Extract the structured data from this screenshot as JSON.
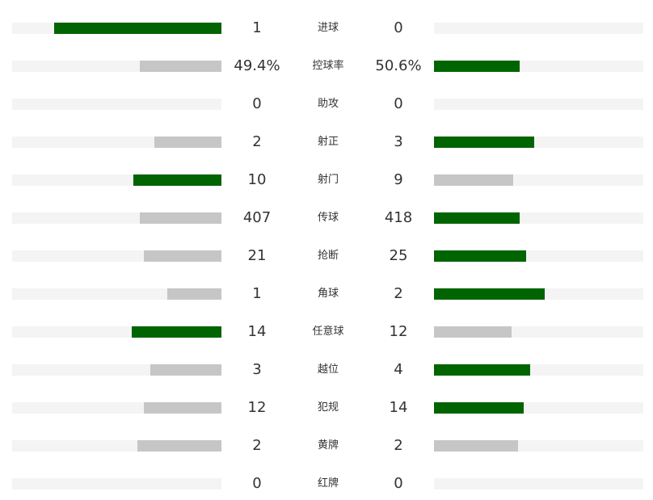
{
  "colors": {
    "leader": "#006400",
    "trailer": "#c6c6c6",
    "track": "#f4f4f4"
  },
  "stats": [
    {
      "label": "进球",
      "home": "1",
      "away": "0",
      "home_fill": 0.8,
      "away_fill": 0.0
    },
    {
      "label": "控球率",
      "home": "49.4%",
      "away": "50.6%",
      "home_fill": 0.39,
      "away_fill": 0.41
    },
    {
      "label": "助攻",
      "home": "0",
      "away": "0",
      "home_fill": 0.0,
      "away_fill": 0.0
    },
    {
      "label": "射正",
      "home": "2",
      "away": "3",
      "home_fill": 0.32,
      "away_fill": 0.48
    },
    {
      "label": "射门",
      "home": "10",
      "away": "9",
      "home_fill": 0.42,
      "away_fill": 0.38
    },
    {
      "label": "传球",
      "home": "407",
      "away": "418",
      "home_fill": 0.39,
      "away_fill": 0.41
    },
    {
      "label": "抢断",
      "home": "21",
      "away": "25",
      "home_fill": 0.37,
      "away_fill": 0.44
    },
    {
      "label": "角球",
      "home": "1",
      "away": "2",
      "home_fill": 0.26,
      "away_fill": 0.53
    },
    {
      "label": "任意球",
      "home": "14",
      "away": "12",
      "home_fill": 0.43,
      "away_fill": 0.37
    },
    {
      "label": "越位",
      "home": "3",
      "away": "4",
      "home_fill": 0.34,
      "away_fill": 0.46
    },
    {
      "label": "犯规",
      "home": "12",
      "away": "14",
      "home_fill": 0.37,
      "away_fill": 0.43
    },
    {
      "label": "黄牌",
      "home": "2",
      "away": "2",
      "home_fill": 0.4,
      "away_fill": 0.4
    },
    {
      "label": "红牌",
      "home": "0",
      "away": "0",
      "home_fill": 0.0,
      "away_fill": 0.0
    }
  ]
}
